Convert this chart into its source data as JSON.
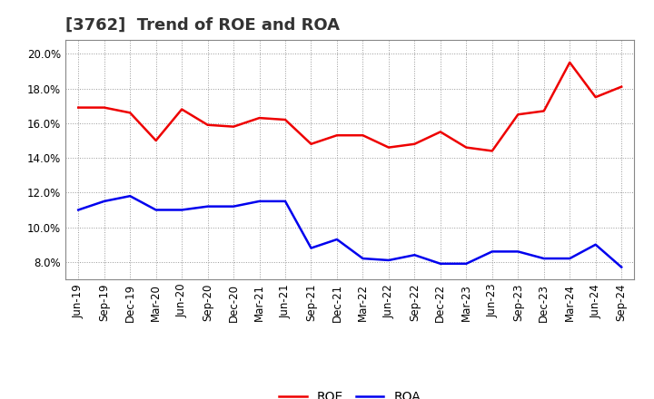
{
  "title": "[3762]  Trend of ROE and ROA",
  "labels": [
    "Jun-19",
    "Sep-19",
    "Dec-19",
    "Mar-20",
    "Jun-20",
    "Sep-20",
    "Dec-20",
    "Mar-21",
    "Jun-21",
    "Sep-21",
    "Dec-21",
    "Mar-22",
    "Jun-22",
    "Sep-22",
    "Dec-22",
    "Mar-23",
    "Jun-23",
    "Sep-23",
    "Dec-23",
    "Mar-24",
    "Jun-24",
    "Sep-24"
  ],
  "ROE": [
    16.9,
    16.9,
    16.6,
    15.0,
    16.8,
    15.9,
    15.8,
    16.3,
    16.2,
    14.8,
    15.3,
    15.3,
    14.6,
    14.8,
    15.5,
    14.6,
    14.4,
    16.5,
    16.7,
    19.5,
    17.5,
    18.1
  ],
  "ROA": [
    11.0,
    11.5,
    11.8,
    11.0,
    11.0,
    11.2,
    11.2,
    11.5,
    11.5,
    8.8,
    9.3,
    8.2,
    8.1,
    8.4,
    7.9,
    7.9,
    8.6,
    8.6,
    8.2,
    8.2,
    9.0,
    7.7
  ],
  "ROE_color": "#ee0000",
  "ROA_color": "#0000ee",
  "ylim": [
    7.0,
    20.8
  ],
  "yticks": [
    8.0,
    10.0,
    12.0,
    14.0,
    16.0,
    18.0,
    20.0
  ],
  "bg_color": "#ffffff",
  "grid_color": "#999999",
  "title_fontsize": 13,
  "legend_fontsize": 10,
  "tick_fontsize": 8.5
}
